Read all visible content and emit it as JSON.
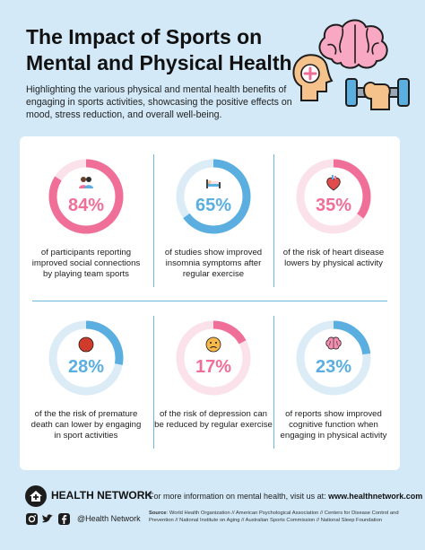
{
  "header": {
    "title_line1": "The Impact of Sports on",
    "title_line2": "Mental and Physical Health",
    "subtitle": "Highlighting the various physical and mental health benefits of engaging in sports activities, showcasing the positive effects on mood, stress reduction, and overall well-being."
  },
  "colors": {
    "background": "#d3e9f7",
    "pink": "#ef6f98",
    "pink_light": "#fbe1ea",
    "blue": "#5aaee0",
    "blue_light": "#dcecf7",
    "divider": "#6fb7de"
  },
  "stats": [
    {
      "value": "84%",
      "fraction": 0.84,
      "color": "pink",
      "icon": "team-people-icon",
      "text": "of participants reporting improved social connections by playing team sports"
    },
    {
      "value": "65%",
      "fraction": 0.65,
      "color": "blue",
      "icon": "sleeping-bed-icon",
      "text": "of studies show improved insomnia symptoms after regular exercise"
    },
    {
      "value": "35%",
      "fraction": 0.35,
      "color": "pink",
      "icon": "heart-organ-icon",
      "text": "of the risk of heart disease lowers by physical activity"
    },
    {
      "value": "28%",
      "fraction": 0.28,
      "color": "blue",
      "icon": "red-circle-icon",
      "text": "of the the risk of premature death can lower by engaging in sport activities"
    },
    {
      "value": "17%",
      "fraction": 0.17,
      "color": "pink",
      "icon": "sad-face-icon",
      "text": "of the risk of depression can be reduced  by regular exercise"
    },
    {
      "value": "23%",
      "fraction": 0.23,
      "color": "blue",
      "icon": "brain-icon",
      "text": "of reports show improved cognitive function when engaging in physical activity"
    }
  ],
  "footer": {
    "brand": "HEALTH NETWORK",
    "handle": "@Health Network",
    "more_info_prefix": "For more information on mental health, visit us at: ",
    "more_info_url": "www.healthnetwork.com",
    "source_label": "Source",
    "source_text": ": World Health Organization // American Psychological Association // Centers for Disease Control and Prevention // National Institute on Aging // Australian Sports Commission // National Sleep Foundation"
  }
}
